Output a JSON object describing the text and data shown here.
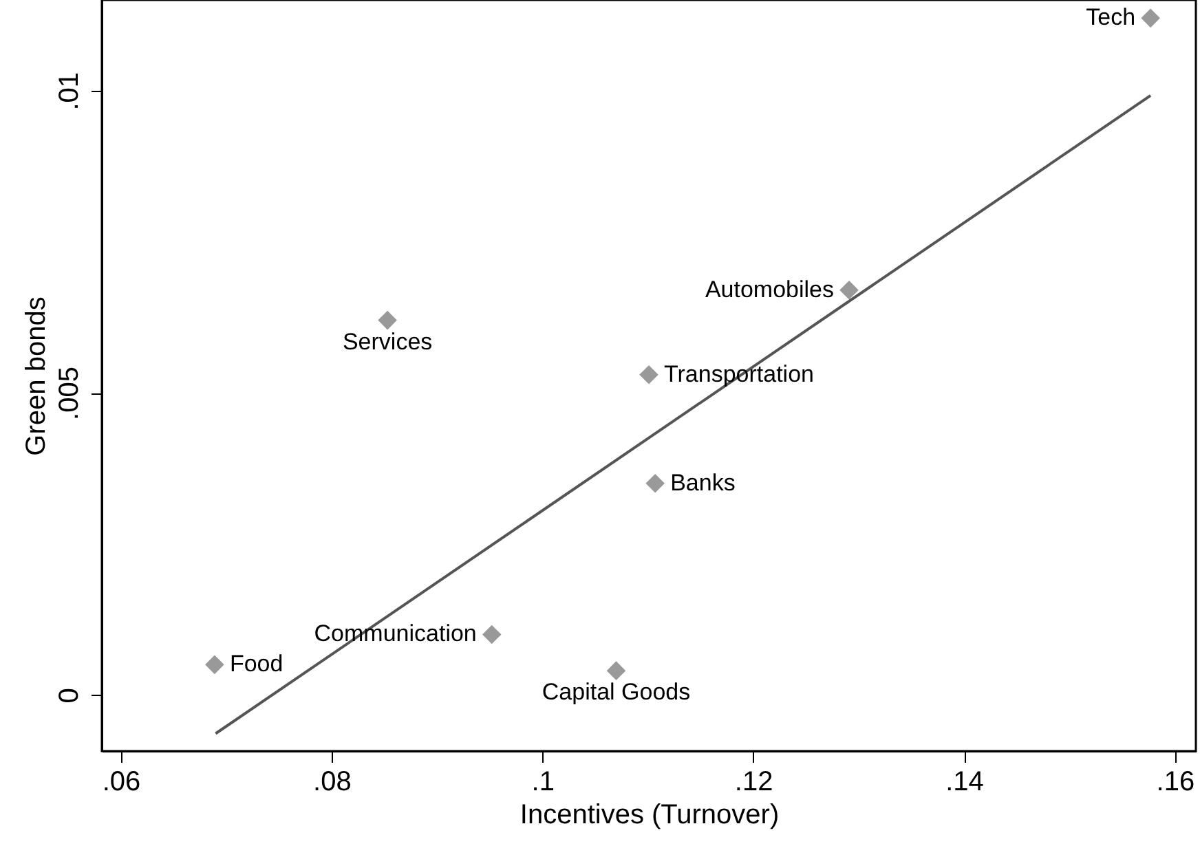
{
  "chart_data": {
    "type": "scatter",
    "xlabel": "Incentives (Turnover)",
    "ylabel": "Green bonds",
    "xlim": [
      0.0582,
      0.162
    ],
    "ylim": [
      -0.00093,
      0.0115
    ],
    "xticks": [
      {
        "value": 0.06,
        "label": ".06"
      },
      {
        "value": 0.08,
        "label": ".08"
      },
      {
        "value": 0.1,
        "label": ".1"
      },
      {
        "value": 0.12,
        "label": ".12"
      },
      {
        "value": 0.14,
        "label": ".14"
      },
      {
        "value": 0.16,
        "label": ".16"
      }
    ],
    "yticks": [
      {
        "value": 0,
        "label": "0"
      },
      {
        "value": 0.005,
        "label": ".005"
      },
      {
        "value": 0.01,
        "label": ".01"
      }
    ],
    "grid": false,
    "series": [
      {
        "marker": "diamond",
        "color": "#999999",
        "x": [
          0.1577,
          0.1291,
          0.1101,
          0.1107,
          0.0853,
          0.0952,
          0.107,
          0.0689
        ],
        "values": [
          0.0112,
          0.0067,
          0.0053,
          0.0035,
          0.0062,
          0.001,
          0.0004,
          0.0005
        ]
      },
      {
        "type": "line",
        "color": "#555555",
        "x": [
          0.069,
          0.1577
        ],
        "values": [
          -0.00064,
          0.00992
        ]
      }
    ],
    "annotations": [
      {
        "text": "Tech",
        "x": 0.1577,
        "y": 0.0112
      },
      {
        "text": "Automobiles",
        "x": 0.1291,
        "y": 0.0067
      },
      {
        "text": "Transportation",
        "x": 0.1101,
        "y": 0.0053
      },
      {
        "text": "Banks",
        "x": 0.1107,
        "y": 0.0035
      },
      {
        "text": "Services",
        "x": 0.0853,
        "y": 0.0062
      },
      {
        "text": "Communication",
        "x": 0.0952,
        "y": 0.001
      },
      {
        "text": "Capital Goods",
        "x": 0.107,
        "y": 0.0004
      },
      {
        "text": "Food",
        "x": 0.0689,
        "y": 0.0005
      }
    ]
  }
}
